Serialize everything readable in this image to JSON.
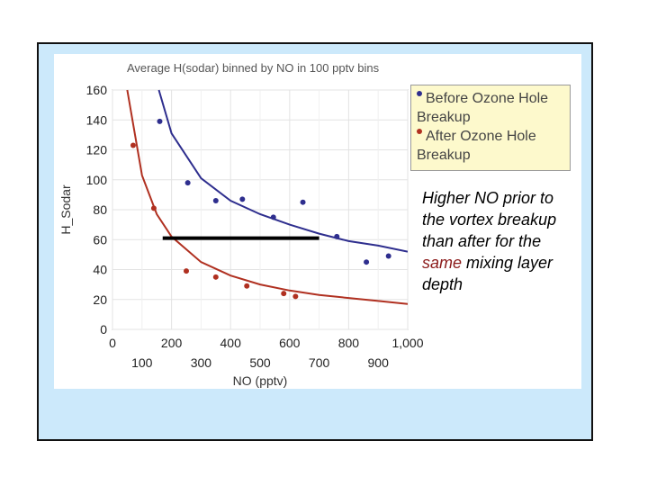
{
  "chart_data": {
    "type": "scatter",
    "title": "Average H(sodar) binned by NO in 100 pptv bins",
    "xlabel": "NO (pptv)",
    "ylabel": "H_Sodar",
    "xlim": [
      0,
      1000
    ],
    "ylim": [
      0,
      160
    ],
    "x_ticks_major": [
      "0",
      "200",
      "400",
      "600",
      "800",
      "1,000"
    ],
    "x_tick_values_major": [
      0,
      200,
      400,
      600,
      800,
      1000
    ],
    "x_ticks_minor": [
      "100",
      "300",
      "500",
      "700",
      "900"
    ],
    "x_tick_values_minor": [
      100,
      300,
      500,
      700,
      900
    ],
    "y_ticks": [
      "0",
      "20",
      "40",
      "60",
      "80",
      "100",
      "120",
      "140",
      "160"
    ],
    "y_tick_values": [
      0,
      20,
      40,
      60,
      80,
      100,
      120,
      140,
      160
    ],
    "grid": true,
    "legend_position": "top-right",
    "series": [
      {
        "name": "Before Ozone Hole Breakup",
        "color": "#2e2e8e",
        "x": [
          160,
          255,
          350,
          440,
          545,
          645,
          760,
          860,
          935
        ],
        "y": [
          139,
          98,
          86,
          87,
          75,
          85,
          62,
          45,
          49
        ],
        "fit": [
          [
            157,
            160
          ],
          [
            200,
            131
          ],
          [
            300,
            101
          ],
          [
            400,
            86
          ],
          [
            500,
            77
          ],
          [
            600,
            70
          ],
          [
            700,
            64
          ],
          [
            800,
            59
          ],
          [
            900,
            56
          ],
          [
            1000,
            52
          ]
        ]
      },
      {
        "name": "After Ozone Hole Breakup",
        "color": "#b03020",
        "x": [
          70,
          140,
          250,
          350,
          455,
          580,
          620
        ],
        "y": [
          123,
          81,
          39,
          35,
          29,
          24,
          22
        ],
        "fit": [
          [
            50,
            160
          ],
          [
            100,
            103
          ],
          [
            150,
            77
          ],
          [
            200,
            62
          ],
          [
            300,
            45
          ],
          [
            400,
            36
          ],
          [
            500,
            30
          ],
          [
            600,
            26
          ],
          [
            700,
            23
          ],
          [
            800,
            21
          ],
          [
            900,
            19
          ],
          [
            1000,
            17
          ]
        ]
      }
    ],
    "reference_line": {
      "x": [
        170,
        700
      ],
      "y": [
        61,
        61
      ],
      "color": "#000000"
    }
  },
  "annotation": {
    "line1": "Higher NO prior to the vortex breakup than after for the ",
    "highlight": "same",
    "line2": " mixing layer depth",
    "highlight_color": "#8b1a1a"
  }
}
